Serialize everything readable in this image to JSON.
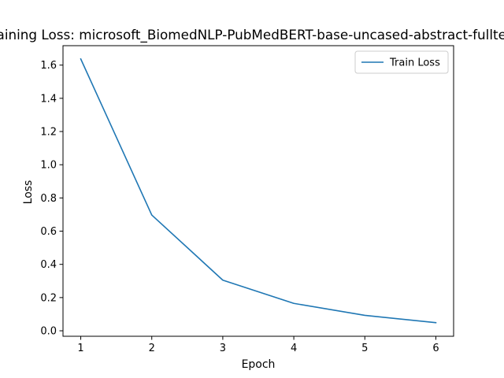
{
  "chart_data": {
    "type": "line",
    "title": "Training Loss: microsoft_BiomedNLP-PubMedBERT-base-uncased-abstract-fulltext",
    "xlabel": "Epoch",
    "ylabel": "Loss",
    "x": [
      1,
      2,
      3,
      4,
      5,
      6
    ],
    "series": [
      {
        "name": "Train Loss",
        "values": [
          1.637,
          0.697,
          0.305,
          0.165,
          0.093,
          0.049
        ],
        "color": "#1f77b4"
      }
    ],
    "xlim": [
      0.75,
      6.25
    ],
    "ylim": [
      -0.033,
      1.717
    ],
    "xticks": [
      1,
      2,
      3,
      4,
      5,
      6
    ],
    "yticks": [
      0.0,
      0.2,
      0.4,
      0.6,
      0.8,
      1.0,
      1.2,
      1.4,
      1.6
    ],
    "ytick_labels": [
      "0.0",
      "0.2",
      "0.4",
      "0.6",
      "0.8",
      "1.0",
      "1.2",
      "1.4",
      "1.6"
    ],
    "xtick_labels": [
      "1",
      "2",
      "3",
      "4",
      "5",
      "6"
    ],
    "legend": {
      "position": "upper right",
      "entries": [
        "Train Loss"
      ]
    },
    "grid": false
  }
}
